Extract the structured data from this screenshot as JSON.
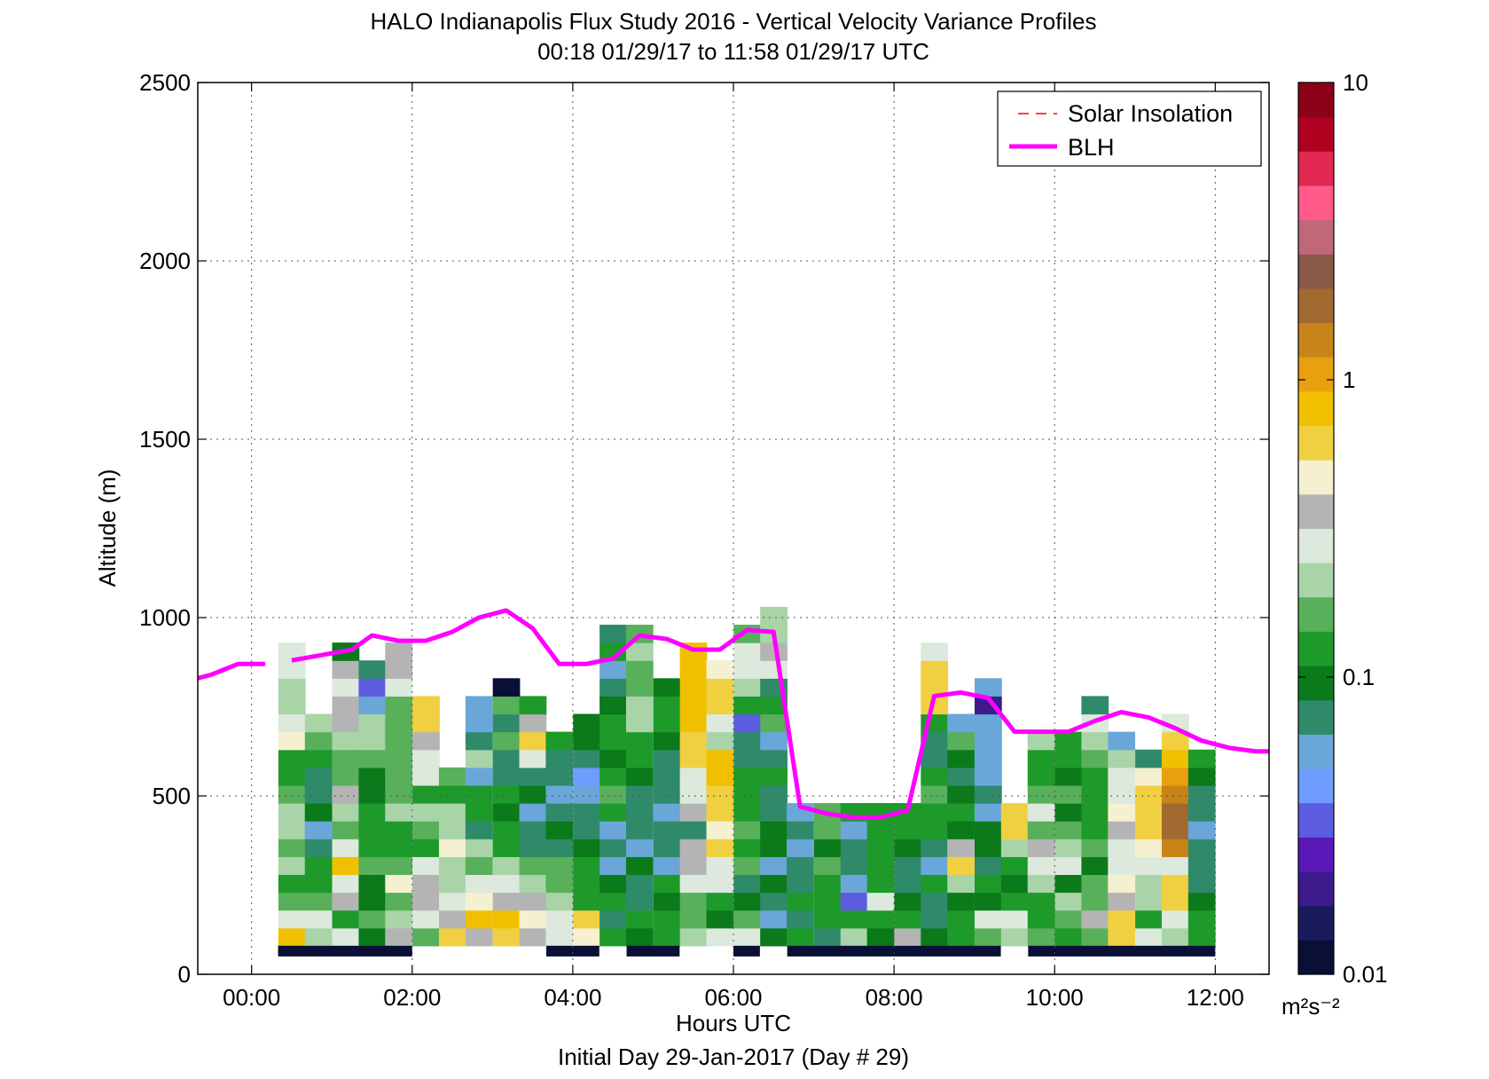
{
  "chart_data": {
    "type": "heatmap",
    "title": "HALO Indianapolis Flux Study 2016 - Vertical Velocity Variance Profiles",
    "subtitle": "00:18 01/29/17 to 11:58 01/29/17  UTC",
    "xlabel": "Hours UTC",
    "xlabel2": "Initial Day 29-Jan-2017 (Day # 29)",
    "ylabel": "Altitude (m)",
    "xlim": [
      -0.67,
      12.67
    ],
    "ylim": [
      0,
      2500
    ],
    "xticks": [
      0,
      2,
      4,
      6,
      8,
      10,
      12
    ],
    "xtick_labels": [
      "00:00",
      "02:00",
      "04:00",
      "06:00",
      "08:00",
      "10:00",
      "12:00"
    ],
    "yticks": [
      0,
      500,
      1000,
      1500,
      2000,
      2500
    ],
    "ytick_labels": [
      "0",
      "500",
      "1000",
      "1500",
      "2000",
      "2500"
    ],
    "grid": true,
    "legend": {
      "placement": "top-right",
      "entries": [
        {
          "label": "Solar Insolation",
          "color": "#ff0000",
          "style": "dashed"
        },
        {
          "label": "BLH",
          "color": "#ff00ff",
          "style": "solid"
        }
      ]
    },
    "colorbar": {
      "scale": "log",
      "range": [
        0.01,
        10
      ],
      "tick_labels": [
        "0.01",
        "0.1",
        "1",
        "10"
      ],
      "tick_values": [
        0.01,
        0.1,
        1,
        10
      ],
      "unit": "m²s⁻²",
      "colors": [
        "#0a0f36",
        "#1a1a5c",
        "#3d1a8c",
        "#5a18b8",
        "#5c5ce0",
        "#6e9cff",
        "#6aa6d8",
        "#2f8a6a",
        "#0b7a1a",
        "#1d9a2a",
        "#58b05a",
        "#a8d4a8",
        "#dce9dc",
        "#b4b4b4",
        "#f4f0d0",
        "#f0d040",
        "#f0c000",
        "#e8a010",
        "#c88418",
        "#a06a30",
        "#8a5a48",
        "#c06878",
        "#ff5a8a",
        "#e02850",
        "#b00020",
        "#8c0018"
      ]
    },
    "cell_width_hours": 0.333,
    "cell_height_m": 50,
    "columns": [
      {
        "x": 0.5,
        "values": [
          0.8,
          0.25,
          0.15,
          0.12,
          0.2,
          0.18,
          0.2,
          0.22,
          0.15,
          0.12,
          0.13,
          0.5,
          0.3,
          0.2,
          0.22,
          0.25,
          0.28
        ]
      },
      {
        "x": 0.83,
        "values": [
          0.2,
          0.3,
          0.18,
          0.13,
          0.12,
          0.08,
          0.06,
          0.1,
          0.07,
          0.08,
          0.12,
          0.18,
          0.2
        ]
      },
      {
        "x": 1.17,
        "values": [
          0.28,
          0.13,
          0.4,
          0.3,
          0.8,
          0.3,
          0.16,
          0.2,
          0.35,
          0.18,
          0.18,
          0.22,
          0.4,
          0.35,
          0.26,
          0.36,
          0.1
        ]
      },
      {
        "x": 1.5,
        "values": [
          0.1,
          0.15,
          0.1,
          0.1,
          0.15,
          0.12,
          0.12,
          0.12,
          0.1,
          0.1,
          0.15,
          0.2,
          0.2,
          0.06,
          0.035,
          0.08
        ]
      },
      {
        "x": 1.83,
        "values": [
          0.4,
          0.2,
          0.16,
          0.5,
          0.16,
          0.13,
          0.14,
          0.2,
          0.16,
          0.15,
          0.15,
          0.18,
          0.18,
          0.18,
          0.3,
          0.38,
          0.4
        ]
      },
      {
        "x": 2.17,
        "values": [
          0.15,
          0.3,
          0.4,
          0.35,
          0.3,
          0.12,
          0.15,
          0.22,
          0.12,
          0.25,
          0.3,
          0.4,
          0.6,
          0.7
        ]
      },
      {
        "x": 2.5,
        "values": [
          0.7,
          0.4,
          0.3,
          0.2,
          0.22,
          0.5,
          0.2,
          0.22,
          0.12,
          0.15
        ]
      },
      {
        "x": 2.83,
        "values": [
          0.4,
          0.9,
          0.5,
          0.3,
          0.15,
          0.2,
          0.08,
          0.12,
          0.12,
          0.06,
          0.2,
          0.08,
          0.05,
          0.05
        ]
      },
      {
        "x": 3.17,
        "values": [
          0.7,
          0.8,
          0.35,
          0.25,
          0.22,
          0.12,
          0.12,
          0.1,
          0.12,
          0.07,
          0.07,
          0.15,
          0.08,
          0.18,
          0.012
        ]
      },
      {
        "x": 3.5,
        "values": [
          0.4,
          0.5,
          0.35,
          0.2,
          0.15,
          0.07,
          0.08,
          0.06,
          0.1,
          0.07,
          0.25,
          0.6,
          0.4,
          0.13
        ]
      },
      {
        "x": 3.83,
        "values": [
          0.26,
          0.3,
          0.22,
          0.18,
          0.15,
          0.08,
          0.1,
          0.07,
          0.06,
          0.08,
          0.07,
          0.11
        ]
      },
      {
        "x": 4.17,
        "values": [
          0.5,
          0.55,
          0.13,
          0.14,
          0.11,
          0.1,
          0.08,
          0.07,
          0.055,
          0.04,
          0.07,
          0.1,
          0.1
        ]
      },
      {
        "x": 4.5,
        "values": [
          0.12,
          0.08,
          0.12,
          0.1,
          0.06,
          0.07,
          0.06,
          0.12,
          0.15,
          0.12,
          0.1,
          0.12,
          0.14,
          0.09,
          0.07,
          0.06,
          0.12,
          0.08
        ]
      },
      {
        "x": 4.83,
        "values": [
          0.1,
          0.14,
          0.08,
          0.07,
          0.1,
          0.06,
          0.08,
          0.08,
          0.065,
          0.1,
          0.14,
          0.12,
          0.2,
          0.2,
          0.17,
          0.16,
          0.2,
          0.18
        ]
      },
      {
        "x": 5.17,
        "values": [
          0.12,
          0.12,
          0.1,
          0.12,
          0.06,
          0.07,
          0.08,
          0.055,
          0.07,
          0.07,
          0.08,
          0.1,
          0.13,
          0.11,
          0.1
        ]
      },
      {
        "x": 5.5,
        "values": [
          0.2,
          0.16,
          0.18,
          0.3,
          0.36,
          0.4,
          0.08,
          0.4,
          0.28,
          0.25,
          0.55,
          0.7,
          0.75,
          0.8,
          0.85,
          0.85,
          0.9
        ]
      },
      {
        "x": 5.83,
        "values": [
          0.26,
          0.1,
          0.14,
          0.28,
          0.25,
          0.6,
          0.5,
          0.55,
          0.55,
          0.75,
          0.75,
          0.2,
          0.25,
          0.6,
          0.6,
          0.5
        ]
      },
      {
        "x": 6.17,
        "values": [
          0.3,
          0.18,
          0.1,
          0.08,
          0.15,
          0.12,
          0.15,
          0.14,
          0.12,
          0.12,
          0.08,
          0.07,
          0.03,
          0.12,
          0.2,
          0.3,
          0.28,
          0.16
        ]
      },
      {
        "x": 6.5,
        "values": [
          0.09,
          0.05,
          0.07,
          0.085,
          0.06,
          0.1,
          0.09,
          0.07,
          0.07,
          0.12,
          0.08,
          0.06,
          0.15,
          0.14,
          0.08,
          0.3,
          0.35,
          0.2,
          0.22
        ]
      },
      {
        "x": 6.83,
        "values": [
          0.12,
          0.08,
          0.12,
          0.065,
          0.07,
          0.055,
          0.07,
          0.05
        ]
      },
      {
        "x": 7.17,
        "values": [
          0.08,
          0.12,
          0.14,
          0.14,
          0.16,
          0.1,
          0.15,
          0.15
        ]
      },
      {
        "x": 7.5,
        "values": [
          0.2,
          0.14,
          0.035,
          0.055,
          0.07,
          0.07,
          0.06,
          0.13
        ]
      },
      {
        "x": 7.83,
        "values": [
          0.1,
          0.13,
          0.3,
          0.13,
          0.11,
          0.12,
          0.14,
          0.14
        ]
      },
      {
        "x": 8.17,
        "values": [
          0.4,
          0.13,
          0.1,
          0.07,
          0.07,
          0.1,
          0.12,
          0.13
        ]
      },
      {
        "x": 8.5,
        "values": [
          0.1,
          0.08,
          0.08,
          0.11,
          0.05,
          0.07,
          0.11,
          0.13,
          0.15,
          0.12,
          0.08,
          0.08,
          0.12,
          0.6,
          0.7,
          0.6,
          0.25
        ]
      },
      {
        "x": 8.83,
        "values": [
          0.13,
          0.14,
          0.09,
          0.2,
          0.6,
          0.4,
          0.1,
          0.12,
          0.1,
          0.07,
          0.1,
          0.15,
          0.06
        ]
      },
      {
        "x": 9.17,
        "values": [
          0.15,
          0.28,
          0.1,
          0.14,
          0.07,
          0.1,
          0.1,
          0.05,
          0.07,
          0.06,
          0.06,
          0.06,
          0.055,
          0.02,
          0.06
        ]
      },
      {
        "x": 9.5,
        "values": [
          0.2,
          0.25,
          0.12,
          0.1,
          0.14,
          0.22,
          0.7,
          0.55
        ]
      },
      {
        "x": 9.83,
        "values": [
          0.15,
          0.14,
          0.12,
          0.2,
          0.25,
          0.35,
          0.15,
          0.25,
          0.16,
          0.12,
          0.11,
          0.2
        ]
      },
      {
        "x": 10.17,
        "values": [
          0.14,
          0.15,
          0.24,
          0.1,
          0.3,
          0.24,
          0.16,
          0.09,
          0.17,
          0.1,
          0.11,
          0.11
        ]
      },
      {
        "x": 10.5,
        "values": [
          0.15,
          0.4,
          0.15,
          0.15,
          0.1,
          0.18,
          0.12,
          0.14,
          0.12,
          0.13,
          0.15,
          0.22,
          0.25,
          0.07
        ]
      },
      {
        "x": 10.83,
        "values": [
          0.55,
          0.55,
          0.4,
          0.5,
          0.25,
          0.28,
          0.35,
          0.45,
          0.3,
          0.28,
          0.22,
          0.055
        ]
      },
      {
        "x": 11.17,
        "values": [
          0.3,
          0.13,
          0.22,
          0.2,
          0.3,
          0.5,
          0.55,
          0.55,
          0.6,
          0.5,
          0.08
        ]
      },
      {
        "x": 11.5,
        "values": [
          0.2,
          0.3,
          0.6,
          0.6,
          0.3,
          1.5,
          2.0,
          1.8,
          1.2,
          1.0,
          0.9,
          0.6,
          0.3
        ]
      },
      {
        "x": 11.83,
        "values": [
          0.13,
          0.11,
          0.1,
          0.07,
          0.08,
          0.08,
          0.055,
          0.07,
          0.07,
          0.1,
          0.12
        ]
      }
    ],
    "bottom_bar": {
      "color": "#0a0f36",
      "value_range_m": [
        50,
        80
      ],
      "segments": [
        [
          0.33,
          2.0
        ],
        [
          3.67,
          4.33
        ],
        [
          4.67,
          5.33
        ],
        [
          6.0,
          6.33
        ],
        [
          6.67,
          9.33
        ],
        [
          9.67,
          12.0
        ]
      ]
    },
    "blh": {
      "color": "#ff00ff",
      "segments": [
        [
          [
            -0.67,
            830
          ],
          [
            -0.5,
            840
          ],
          [
            -0.17,
            870
          ],
          [
            0.17,
            870
          ]
        ],
        [
          [
            0.5,
            880
          ],
          [
            1.0,
            900
          ],
          [
            1.25,
            910
          ],
          [
            1.5,
            950
          ],
          [
            1.83,
            935
          ],
          [
            2.17,
            935
          ],
          [
            2.5,
            960
          ],
          [
            2.83,
            1000
          ],
          [
            3.17,
            1020
          ],
          [
            3.5,
            970
          ],
          [
            3.83,
            870
          ],
          [
            4.17,
            870
          ],
          [
            4.5,
            885
          ],
          [
            4.83,
            950
          ],
          [
            5.17,
            940
          ],
          [
            5.5,
            910
          ],
          [
            5.83,
            910
          ],
          [
            6.17,
            965
          ],
          [
            6.5,
            960
          ],
          [
            6.83,
            470
          ],
          [
            7.17,
            450
          ],
          [
            7.5,
            440
          ],
          [
            7.83,
            440
          ],
          [
            8.17,
            460
          ],
          [
            8.5,
            780
          ],
          [
            8.83,
            790
          ],
          [
            9.17,
            775
          ],
          [
            9.5,
            680
          ],
          [
            9.83,
            680
          ],
          [
            10.17,
            680
          ],
          [
            10.5,
            710
          ],
          [
            10.83,
            735
          ],
          [
            11.17,
            720
          ],
          [
            11.5,
            690
          ],
          [
            11.83,
            655
          ],
          [
            12.17,
            635
          ],
          [
            12.5,
            625
          ],
          [
            12.67,
            625
          ]
        ]
      ]
    }
  }
}
